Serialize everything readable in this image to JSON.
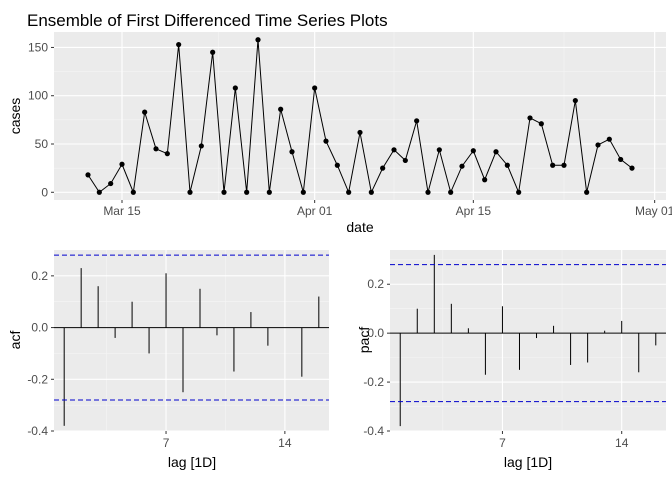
{
  "title": "Ensemble of First Differenced Time Series Plots",
  "chart_data": [
    {
      "type": "line",
      "panel": "time-series",
      "xlabel": "date",
      "ylabel": "cases",
      "x_ticks": [
        "Mar 15",
        "Apr 01",
        "Apr 15",
        "May 01"
      ],
      "x_tick_dates": [
        "2020-03-15",
        "2020-04-01",
        "2020-04-15",
        "2020-05-01"
      ],
      "xlim": [
        "2020-03-09",
        "2020-05-02"
      ],
      "y_ticks": [
        0,
        50,
        100,
        150
      ],
      "ylim": [
        -8,
        166
      ],
      "grid": true,
      "points_shown": true,
      "series": [
        {
          "dates": [
            "2020-03-12",
            "2020-03-13",
            "2020-03-14",
            "2020-03-15",
            "2020-03-16",
            "2020-03-17",
            "2020-03-18",
            "2020-03-19",
            "2020-03-20",
            "2020-03-21",
            "2020-03-22",
            "2020-03-23",
            "2020-03-24",
            "2020-03-25",
            "2020-03-26",
            "2020-03-27",
            "2020-03-28",
            "2020-03-29",
            "2020-03-30",
            "2020-03-31",
            "2020-04-01",
            "2020-04-02",
            "2020-04-03",
            "2020-04-04",
            "2020-04-05",
            "2020-04-06",
            "2020-04-07",
            "2020-04-08",
            "2020-04-09",
            "2020-04-10",
            "2020-04-11",
            "2020-04-12",
            "2020-04-13",
            "2020-04-14",
            "2020-04-15",
            "2020-04-16",
            "2020-04-17",
            "2020-04-18",
            "2020-04-19",
            "2020-04-20",
            "2020-04-21",
            "2020-04-22",
            "2020-04-23",
            "2020-04-24",
            "2020-04-25",
            "2020-04-26",
            "2020-04-27",
            "2020-04-28",
            "2020-04-29",
            "2020-04-30"
          ],
          "values": [
            18,
            0,
            9,
            29,
            0,
            83,
            45,
            40,
            153,
            0,
            48,
            145,
            0,
            108,
            0,
            158,
            0,
            86,
            42,
            0,
            108,
            53,
            28,
            0,
            62,
            0,
            25,
            44,
            33,
            74,
            0,
            44,
            0,
            27,
            43,
            13,
            42,
            28,
            0,
            77,
            71,
            28,
            28,
            95,
            0,
            49,
            55,
            34,
            25,
            null
          ]
        }
      ]
    },
    {
      "type": "bar",
      "panel": "acf",
      "xlabel": "lag [1D]",
      "ylabel": "acf",
      "lags": [
        1,
        2,
        3,
        4,
        5,
        6,
        7,
        8,
        9,
        10,
        11,
        12,
        13,
        14,
        15,
        16
      ],
      "values": [
        -0.38,
        0.23,
        0.16,
        -0.04,
        0.1,
        -0.1,
        0.21,
        -0.25,
        0.15,
        -0.03,
        -0.17,
        0.06,
        -0.07,
        0.0,
        -0.19,
        0.12
      ],
      "x_ticks": [
        7,
        14
      ],
      "xlim": [
        0.4,
        16.6
      ],
      "y_ticks": [
        -0.4,
        -0.2,
        0.0,
        0.2
      ],
      "y_tick_labels": [
        "-0.4",
        "-0.2",
        "0.0",
        "0.2"
      ],
      "ylim": [
        -0.4,
        0.3
      ],
      "confidence_bound": 0.28,
      "grid": true
    },
    {
      "type": "bar",
      "panel": "pacf",
      "xlabel": "lag [1D]",
      "ylabel": "pacf",
      "lags": [
        1,
        2,
        3,
        4,
        5,
        6,
        7,
        8,
        9,
        10,
        11,
        12,
        13,
        14,
        15,
        16
      ],
      "values": [
        -0.38,
        0.1,
        0.32,
        0.12,
        0.02,
        -0.17,
        0.11,
        -0.15,
        -0.02,
        0.03,
        -0.13,
        -0.12,
        0.01,
        0.05,
        -0.16,
        -0.05
      ],
      "x_ticks": [
        7,
        14
      ],
      "xlim": [
        0.4,
        16.6
      ],
      "y_ticks": [
        -0.4,
        -0.2,
        0.0,
        0.2
      ],
      "y_tick_labels": [
        "-0.4",
        "-0.2",
        "0.0",
        "0.2"
      ],
      "ylim": [
        -0.4,
        0.34
      ],
      "confidence_bound": 0.28,
      "grid": true
    }
  ],
  "colors": {
    "panel_background": "#ebebeb",
    "grid_major": "#ffffff",
    "grid_minor": "#f5f5f5",
    "line": "#000000",
    "confidence_line": "#0000cd",
    "tick_text": "#4d4d4d"
  }
}
